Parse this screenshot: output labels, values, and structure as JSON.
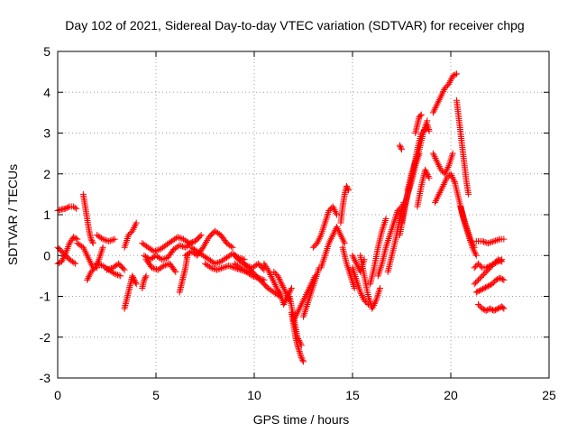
{
  "chart_data": {
    "type": "scatter",
    "title": "Day 102 of 2021, Sidereal Day-to-day VTEC variation (SDTVAR) for receiver chpg",
    "xlabel": "GPS time / hours",
    "ylabel": "SDTVAR / TECUs",
    "xlim": [
      0,
      25
    ],
    "ylim": [
      -3,
      5
    ],
    "xticks": [
      0,
      5,
      10,
      15,
      20,
      25
    ],
    "yticks": [
      -3,
      -2,
      -1,
      0,
      1,
      2,
      3,
      4,
      5
    ],
    "grid": true,
    "marker": "+",
    "series": [
      {
        "name": "SDTVAR",
        "color": "#ff0000",
        "tracks": [
          {
            "x": [
              0.0,
              0.2,
              0.4,
              0.6,
              0.8,
              0.95
            ],
            "y": [
              1.1,
              1.13,
              1.15,
              1.2,
              1.2,
              1.15
            ]
          },
          {
            "x": [
              0.0,
              0.3,
              0.6,
              0.9
            ],
            "y": [
              0.2,
              0.05,
              -0.1,
              -0.2
            ]
          },
          {
            "x": [
              0.0,
              0.2,
              0.4,
              0.6,
              0.8,
              1.0
            ],
            "y": [
              -0.2,
              -0.15,
              0.05,
              0.3,
              0.45,
              0.4
            ]
          },
          {
            "x": [
              1.0,
              1.3,
              1.6,
              1.8,
              2.0
            ],
            "y": [
              0.3,
              0.2,
              -0.1,
              -0.3,
              -0.3
            ]
          },
          {
            "x": [
              1.3,
              1.4,
              1.5,
              1.6,
              1.7,
              1.8
            ],
            "y": [
              1.5,
              1.2,
              0.9,
              0.6,
              0.4,
              0.3
            ]
          },
          {
            "x": [
              1.5,
              1.7,
              1.9,
              2.1,
              2.3
            ],
            "y": [
              -0.6,
              -0.4,
              -0.3,
              -0.1,
              0.2
            ]
          },
          {
            "x": [
              2.0,
              2.3,
              2.6,
              2.9
            ],
            "y": [
              0.5,
              0.4,
              0.35,
              0.4
            ]
          },
          {
            "x": [
              2.0,
              2.3,
              2.6,
              2.9,
              3.2
            ],
            "y": [
              -0.2,
              -0.25,
              -0.35,
              -0.45,
              -0.5
            ]
          },
          {
            "x": [
              2.5,
              2.8,
              3.1,
              3.4
            ],
            "y": [
              -0.35,
              -0.3,
              -0.2,
              -0.35
            ]
          },
          {
            "x": [
              3.4,
              3.5,
              3.6,
              3.7,
              3.8,
              3.9,
              4.0
            ],
            "y": [
              -1.3,
              -1.1,
              -0.9,
              -0.7,
              -0.5,
              -0.6,
              -0.7
            ]
          },
          {
            "x": [
              3.4,
              3.6,
              3.8,
              4.0
            ],
            "y": [
              0.2,
              0.5,
              0.6,
              0.8
            ]
          },
          {
            "x": [
              4.3,
              4.4,
              4.5
            ],
            "y": [
              -0.8,
              -0.6,
              -0.5
            ]
          },
          {
            "x": [
              4.3,
              4.6,
              4.9,
              5.2,
              5.5,
              5.8,
              6.1,
              6.4,
              6.7,
              7.0,
              7.3
            ],
            "y": [
              0.3,
              0.2,
              0.1,
              0.15,
              0.25,
              0.35,
              0.45,
              0.4,
              0.3,
              0.35,
              0.5
            ]
          },
          {
            "x": [
              4.4,
              4.7,
              5.0,
              5.3,
              5.6,
              5.9,
              6.2,
              6.5,
              6.8
            ],
            "y": [
              0.0,
              -0.1,
              0.0,
              -0.1,
              -0.05,
              0.15,
              0.25,
              0.2,
              0.3
            ]
          },
          {
            "x": [
              4.5,
              4.8,
              5.1,
              5.4,
              5.7,
              6.0
            ],
            "y": [
              -0.1,
              -0.3,
              -0.35,
              -0.25,
              -0.2,
              -0.4
            ]
          },
          {
            "x": [
              6.2,
              6.3,
              6.4,
              6.5,
              6.6
            ],
            "y": [
              -0.9,
              -0.7,
              -0.5,
              -0.3,
              0.0
            ]
          },
          {
            "x": [
              6.5,
              6.8,
              7.1,
              7.4,
              7.7,
              8.0,
              8.3,
              8.6,
              8.9
            ],
            "y": [
              0.0,
              0.1,
              0.0,
              0.2,
              0.45,
              0.6,
              0.5,
              0.3,
              0.2
            ]
          },
          {
            "x": [
              6.8,
              7.1,
              7.4,
              7.7,
              8.0,
              8.3,
              8.6,
              8.9,
              9.2,
              9.5
            ],
            "y": [
              0.2,
              0.1,
              0.0,
              -0.1,
              -0.2,
              -0.15,
              -0.05,
              0.05,
              -0.05,
              -0.1
            ]
          },
          {
            "x": [
              7.5,
              7.8,
              8.1,
              8.4,
              8.7,
              9.0,
              9.3,
              9.6
            ],
            "y": [
              -0.2,
              -0.3,
              -0.35,
              -0.3,
              -0.25,
              -0.3,
              -0.35,
              -0.4
            ]
          },
          {
            "x": [
              9.0,
              9.3,
              9.6,
              9.9,
              10.2,
              10.5
            ],
            "y": [
              -0.2,
              -0.3,
              -0.4,
              -0.5,
              -0.55,
              -0.6
            ]
          },
          {
            "x": [
              9.0,
              9.3,
              9.6,
              9.9,
              10.2,
              10.5
            ],
            "y": [
              0.0,
              -0.15,
              -0.25,
              -0.3,
              -0.2,
              -0.35
            ]
          },
          {
            "x": [
              9.5,
              9.8,
              10.1,
              10.4,
              10.7,
              11.0,
              11.3
            ],
            "y": [
              -0.2,
              -0.35,
              -0.5,
              -0.65,
              -0.8,
              -0.9,
              -1.0
            ]
          },
          {
            "x": [
              10.5,
              10.7,
              10.9,
              11.1,
              11.3
            ],
            "y": [
              -0.2,
              -0.35,
              -0.55,
              -0.75,
              -0.95
            ]
          },
          {
            "x": [
              11.0,
              11.2,
              11.4,
              11.6,
              11.8
            ],
            "y": [
              -0.4,
              -0.5,
              -0.7,
              -0.9,
              -1.1
            ]
          },
          {
            "x": [
              11.3,
              11.5,
              11.7,
              11.9
            ],
            "y": [
              -0.9,
              -1.2,
              -1.0,
              -0.8
            ]
          },
          {
            "x": [
              11.8,
              12.0,
              12.2,
              12.4
            ],
            "y": [
              -1.0,
              -1.5,
              -2.0,
              -2.2
            ]
          },
          {
            "x": [
              11.9,
              12.0,
              12.1,
              12.2,
              12.3,
              12.4,
              12.5
            ],
            "y": [
              -1.4,
              -1.7,
              -2.0,
              -2.2,
              -2.35,
              -2.5,
              -2.6
            ]
          },
          {
            "x": [
              12.0,
              12.3,
              12.6,
              12.9,
              13.1
            ],
            "y": [
              -1.6,
              -1.3,
              -1.0,
              -0.7,
              -0.5
            ]
          },
          {
            "x": [
              12.5,
              12.7,
              12.9,
              13.1,
              13.3
            ],
            "y": [
              -1.5,
              -1.2,
              -0.9,
              -0.6,
              -0.3
            ]
          },
          {
            "x": [
              13.0,
              13.2,
              13.4,
              13.6,
              13.8,
              14.0,
              14.2
            ],
            "y": [
              0.2,
              0.3,
              0.5,
              0.8,
              1.1,
              1.2,
              1.0
            ]
          },
          {
            "x": [
              13.4,
              13.6,
              13.8,
              14.0,
              14.2,
              14.4,
              14.6
            ],
            "y": [
              -0.3,
              0.0,
              0.3,
              0.5,
              0.7,
              0.5,
              0.3
            ]
          },
          {
            "x": [
              14.4,
              14.5,
              14.6,
              14.7,
              14.8
            ],
            "y": [
              0.8,
              1.2,
              1.5,
              1.7,
              1.6
            ]
          },
          {
            "x": [
              14.5,
              14.7,
              14.9,
              15.1
            ],
            "y": [
              0.2,
              -0.2,
              -0.5,
              -0.8
            ]
          },
          {
            "x": [
              15.0,
              15.2,
              15.4,
              15.6,
              15.8
            ],
            "y": [
              -0.3,
              -0.6,
              -0.9,
              -1.1,
              -1.2
            ]
          },
          {
            "x": [
              15.0,
              15.2,
              15.4,
              15.6
            ],
            "y": [
              0.0,
              -0.2,
              -0.4,
              -0.1
            ]
          },
          {
            "x": [
              15.4,
              15.6,
              15.8,
              16.0,
              16.2,
              16.4
            ],
            "y": [
              0.0,
              -0.5,
              -1.0,
              -1.3,
              -1.1,
              -0.8
            ]
          },
          {
            "x": [
              15.9,
              16.1,
              16.3,
              16.5,
              16.7
            ],
            "y": [
              -0.7,
              -0.3,
              0.2,
              0.6,
              0.9
            ]
          },
          {
            "x": [
              16.3,
              16.5,
              16.7,
              16.9,
              17.1,
              17.3,
              17.5
            ],
            "y": [
              -0.5,
              -0.2,
              0.2,
              0.5,
              0.8,
              1.1,
              1.2
            ]
          },
          {
            "x": [
              16.8,
              17.0,
              17.2,
              17.4,
              17.6
            ],
            "y": [
              -0.4,
              0.0,
              0.4,
              0.9,
              1.3
            ]
          },
          {
            "x": [
              17.4,
              17.6,
              17.8,
              18.0,
              18.2,
              18.4
            ],
            "y": [
              0.5,
              1.0,
              1.5,
              1.8,
              2.2,
              2.5
            ]
          },
          {
            "x": [
              17.5,
              17.7,
              17.9,
              18.1,
              18.3,
              18.5
            ],
            "y": [
              0.8,
              1.3,
              1.7,
              2.1,
              2.6,
              3.0
            ]
          },
          {
            "x": [
              17.8,
              18.0,
              18.2,
              18.4,
              18.6,
              18.8
            ],
            "y": [
              1.6,
              2.0,
              2.3,
              2.6,
              3.0,
              3.3
            ]
          },
          {
            "x": [
              17.4,
              17.5
            ],
            "y": [
              2.7,
              2.6
            ]
          },
          {
            "x": [
              18.2,
              18.3,
              18.4,
              18.5
            ],
            "y": [
              3.0,
              3.2,
              3.4,
              3.45
            ]
          },
          {
            "x": [
              18.3,
              18.5,
              18.7,
              18.9
            ],
            "y": [
              1.2,
              1.7,
              2.1,
              1.9
            ]
          },
          {
            "x": [
              18.6,
              18.7,
              18.8,
              18.9
            ],
            "y": [
              3.0,
              3.1,
              3.2,
              3.05
            ]
          },
          {
            "x": [
              19.1,
              19.3,
              19.5,
              19.7,
              19.9,
              20.1,
              20.3
            ],
            "y": [
              3.5,
              3.7,
              3.9,
              4.1,
              4.2,
              4.4,
              4.45
            ]
          },
          {
            "x": [
              19.1,
              19.3,
              19.5,
              19.7,
              19.9,
              20.1
            ],
            "y": [
              2.5,
              2.3,
              2.1,
              2.0,
              2.2,
              2.5
            ]
          },
          {
            "x": [
              19.2,
              19.4,
              19.6,
              19.8,
              20.0,
              20.2
            ],
            "y": [
              1.3,
              1.5,
              1.7,
              1.9,
              2.0,
              1.8
            ]
          },
          {
            "x": [
              20.3,
              20.4,
              20.5,
              20.6,
              20.7,
              20.8,
              20.9
            ],
            "y": [
              3.8,
              3.4,
              3.0,
              2.6,
              2.2,
              1.8,
              1.5
            ]
          },
          {
            "x": [
              20.2,
              20.4,
              20.6,
              20.8,
              21.0,
              21.2
            ],
            "y": [
              1.8,
              1.4,
              1.0,
              0.7,
              0.4,
              0.2
            ]
          },
          {
            "x": [
              20.5,
              20.7,
              20.9,
              21.1,
              21.3
            ],
            "y": [
              1.2,
              0.8,
              0.5,
              0.2,
              0.0
            ]
          },
          {
            "x": [
              21.3,
              21.6,
              21.9,
              22.2,
              22.5,
              22.7
            ],
            "y": [
              0.35,
              0.35,
              0.3,
              0.35,
              0.4,
              0.4
            ]
          },
          {
            "x": [
              21.2,
              21.4,
              21.6,
              21.8,
              22.0,
              22.2,
              22.4,
              22.6
            ],
            "y": [
              -0.3,
              -0.2,
              -0.3,
              -0.3,
              -0.25,
              -0.2,
              -0.15,
              -0.1
            ]
          },
          {
            "x": [
              21.2,
              21.4,
              21.6,
              21.8,
              22.0,
              22.2,
              22.4,
              22.6
            ],
            "y": [
              -0.7,
              -0.6,
              -0.5,
              -0.4,
              -0.3,
              -0.2,
              -0.1,
              -0.15
            ]
          },
          {
            "x": [
              21.3,
              21.5,
              21.7,
              21.9,
              22.1,
              22.3,
              22.5,
              22.7
            ],
            "y": [
              -0.9,
              -0.85,
              -0.8,
              -0.75,
              -0.7,
              -0.6,
              -0.55,
              -0.6
            ]
          },
          {
            "x": [
              21.4,
              21.6,
              21.8,
              22.0,
              22.2,
              22.4,
              22.6,
              22.7
            ],
            "y": [
              -1.2,
              -1.3,
              -1.35,
              -1.3,
              -1.35,
              -1.3,
              -1.25,
              -1.3
            ]
          }
        ]
      }
    ]
  }
}
